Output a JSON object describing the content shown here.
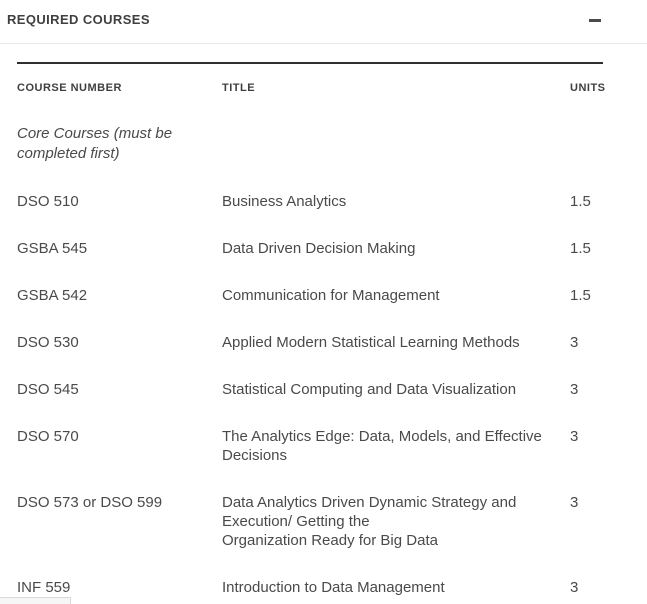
{
  "section": {
    "title": "REQUIRED COURSES",
    "collapse_icon": "minus"
  },
  "table": {
    "columns": [
      "COURSE NUMBER",
      "TITLE",
      "UNITS"
    ],
    "group_label": "Core Courses (must be completed first)",
    "rows": [
      {
        "course": "DSO 510",
        "title": "Business Analytics",
        "units": "1.5"
      },
      {
        "course": "GSBA 545",
        "title": "Data Driven Decision Making",
        "units": "1.5"
      },
      {
        "course": "GSBA 542",
        "title": "Communication for Management",
        "units": "1.5"
      },
      {
        "course": "DSO 530",
        "title": "Applied Modern Statistical Learning Methods",
        "units": "3"
      },
      {
        "course": "DSO 545",
        "title": "Statistical Computing and Data Visualization",
        "units": "3"
      },
      {
        "course": "DSO 570",
        "title": "The Analytics Edge: Data, Models, and Effective Decisions",
        "units": "3"
      },
      {
        "course": "DSO 573 or DSO 599",
        "title": "Data Analytics Driven Dynamic Strategy and Execution/ Getting the\nOrganization Ready for Big Data",
        "units": "3"
      },
      {
        "course": "INF 559",
        "title": "Introduction to Data Management",
        "units": "3"
      }
    ]
  },
  "colors": {
    "heading_text": "#3f3f3f",
    "body_text": "#4a4a4a",
    "divider_light": "#e9e9e9",
    "table_border_dark": "#2f2f2f",
    "background": "#ffffff"
  }
}
